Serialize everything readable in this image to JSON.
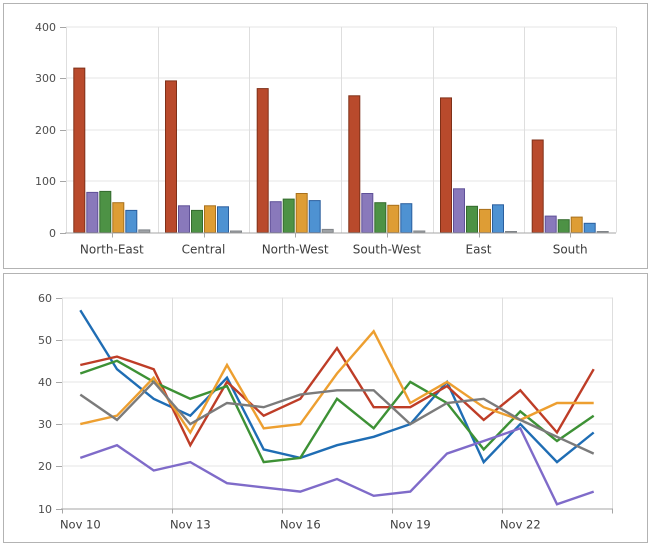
{
  "window": {
    "background": "#ffffff",
    "panel_border": "#b3b3b3"
  },
  "theme": {
    "plot_bg": "#ffffff",
    "grid_color": "#e4e4e4",
    "boundary_color": "#dedede",
    "axis_color": "#a6a6a6",
    "tick_color": "#a6a6a6",
    "tick_label_color": "#4d4d4d",
    "category_label_color": "#3d3d3d"
  },
  "chart_data": [
    {
      "type": "bar",
      "title": "",
      "xlabel": "",
      "ylabel": "",
      "categories": [
        "North-East",
        "Central",
        "North-West",
        "South-West",
        "East",
        "South"
      ],
      "series": [
        {
          "name": "rust-red",
          "color": "#b94a2c",
          "border_color": "#7f3018",
          "values": [
            320,
            295,
            280,
            266,
            262,
            180
          ]
        },
        {
          "name": "purple",
          "color": "#8979bb",
          "border_color": "#5f5198",
          "values": [
            78,
            52,
            60,
            76,
            85,
            32
          ]
        },
        {
          "name": "green",
          "color": "#4d9245",
          "border_color": "#346b2d",
          "values": [
            80,
            43,
            65,
            58,
            51,
            25
          ]
        },
        {
          "name": "orange",
          "color": "#de9d35",
          "border_color": "#a8701c",
          "values": [
            58,
            52,
            76,
            53,
            45,
            30
          ]
        },
        {
          "name": "blue",
          "color": "#4e92d2",
          "border_color": "#2a5f9e",
          "values": [
            43,
            50,
            62,
            56,
            54,
            18
          ]
        },
        {
          "name": "gray",
          "color": "#9ea2a6",
          "border_color": "#808488",
          "values": [
            5,
            3,
            6,
            3,
            2,
            2
          ]
        }
      ],
      "ylim": [
        0,
        400
      ],
      "yticks": [
        0,
        100,
        200,
        300,
        400
      ],
      "grid": true,
      "legend": "none"
    },
    {
      "type": "line",
      "title": "",
      "xlabel": "",
      "ylabel": "",
      "x": [
        "Nov 10",
        "Nov 11",
        "Nov 12",
        "Nov 13",
        "Nov 14",
        "Nov 15",
        "Nov 16",
        "Nov 17",
        "Nov 18",
        "Nov 19",
        "Nov 20",
        "Nov 21",
        "Nov 22",
        "Nov 23",
        "Nov 24"
      ],
      "x_tick_labels": [
        "Nov 10",
        "Nov 13",
        "Nov 16",
        "Nov 19",
        "Nov 22"
      ],
      "x_tick_every": 3,
      "series": [
        {
          "name": "blue",
          "color": "#1f6db4",
          "values": [
            57,
            43,
            36,
            32,
            41,
            24,
            22,
            25,
            27,
            30,
            40,
            21,
            30,
            21,
            28
          ]
        },
        {
          "name": "red",
          "color": "#be3d27",
          "values": [
            44,
            46,
            43,
            25,
            40,
            32,
            36,
            48,
            34,
            34,
            39,
            31,
            38,
            28,
            43
          ]
        },
        {
          "name": "green",
          "color": "#3d9135",
          "values": [
            42,
            45,
            40,
            36,
            39,
            21,
            22,
            36,
            29,
            40,
            35,
            24,
            33,
            26,
            32
          ]
        },
        {
          "name": "orange",
          "color": "#ed9f30",
          "values": [
            30,
            32,
            41,
            28,
            44,
            29,
            30,
            42,
            52,
            35,
            40,
            34,
            31,
            35,
            35
          ]
        },
        {
          "name": "gray",
          "color": "#7b7b7b",
          "values": [
            37,
            31,
            40,
            30,
            35,
            34,
            37,
            38,
            38,
            30,
            35,
            36,
            31,
            27,
            23
          ]
        },
        {
          "name": "purple",
          "color": "#7f6bc9",
          "values": [
            22,
            25,
            19,
            21,
            16,
            15,
            14,
            17,
            13,
            14,
            23,
            26,
            29,
            11,
            14
          ]
        }
      ],
      "ylim": [
        10,
        60
      ],
      "yticks": [
        10,
        20,
        30,
        40,
        50,
        60
      ],
      "grid": true,
      "legend": "none"
    }
  ]
}
